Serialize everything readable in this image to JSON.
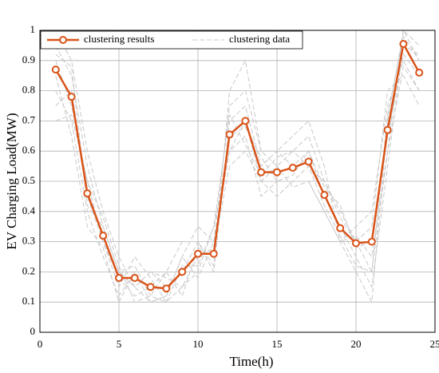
{
  "chart_data": {
    "type": "line",
    "xlabel": "Time(h)",
    "ylabel": "EV Charging Load(MW)",
    "x": [
      1,
      2,
      3,
      4,
      5,
      6,
      7,
      8,
      9,
      10,
      11,
      12,
      13,
      14,
      15,
      16,
      17,
      18,
      19,
      20,
      21,
      22,
      23,
      24
    ],
    "series": [
      {
        "name": "clustering results",
        "color": "#d95319",
        "values": [
          0.87,
          0.78,
          0.46,
          0.32,
          0.18,
          0.18,
          0.15,
          0.145,
          0.2,
          0.26,
          0.26,
          0.655,
          0.7,
          0.53,
          0.53,
          0.545,
          0.565,
          0.455,
          0.345,
          0.295,
          0.3,
          0.67,
          0.955,
          0.86
        ]
      },
      {
        "name": "clustering data",
        "color": "#c8c8c8",
        "values": [
          [
            0.95,
            0.85,
            0.55,
            0.35,
            0.2,
            0.15,
            0.1,
            0.12,
            0.25,
            0.35,
            0.3,
            0.75,
            0.8,
            0.6,
            0.55,
            0.6,
            0.65,
            0.5,
            0.4,
            0.3,
            0.2,
            0.6,
            1,
            0.9
          ],
          [
            0.8,
            0.7,
            0.4,
            0.25,
            0.12,
            0.2,
            0.2,
            0.18,
            0.15,
            0.2,
            0.35,
            0.6,
            0.65,
            0.45,
            0.5,
            0.5,
            0.5,
            0.4,
            0.3,
            0.35,
            0.4,
            0.75,
            0.9,
            0.8
          ],
          [
            0.9,
            0.75,
            0.5,
            0.38,
            0.22,
            0.1,
            0.12,
            0.2,
            0.3,
            0.3,
            0.2,
            0.7,
            0.75,
            0.55,
            0.6,
            0.55,
            0.6,
            0.45,
            0.35,
            0.25,
            0.15,
            0.55,
            0.95,
            0.92
          ],
          [
            0.75,
            0.8,
            0.45,
            0.3,
            0.15,
            0.25,
            0.18,
            0.1,
            0.15,
            0.25,
            0.28,
            0.55,
            0.6,
            0.5,
            0.45,
            0.5,
            0.55,
            0.5,
            0.38,
            0.3,
            0.35,
            0.8,
            0.85,
            0.75
          ],
          [
            1,
            0.9,
            0.6,
            0.4,
            0.25,
            0.15,
            0.2,
            0.15,
            0.2,
            0.3,
            0.22,
            0.8,
            0.9,
            0.6,
            0.6,
            0.65,
            0.7,
            0.55,
            0.3,
            0.2,
            0.1,
            0.7,
            1,
            0.95
          ],
          [
            0.85,
            0.65,
            0.35,
            0.28,
            0.1,
            0.2,
            0.1,
            0.12,
            0.25,
            0.18,
            0.3,
            0.6,
            0.7,
            0.5,
            0.55,
            0.48,
            0.5,
            0.4,
            0.3,
            0.32,
            0.25,
            0.6,
            0.88,
            0.8
          ],
          [
            0.7,
            0.72,
            0.5,
            0.3,
            0.18,
            0.12,
            0.15,
            0.2,
            0.12,
            0.28,
            0.25,
            0.65,
            0.68,
            0.58,
            0.5,
            0.52,
            0.6,
            0.48,
            0.42,
            0.28,
            0.3,
            0.65,
            0.92,
            0.85
          ],
          [
            0.92,
            0.88,
            0.42,
            0.35,
            0.2,
            0.22,
            0.12,
            0.1,
            0.22,
            0.22,
            0.35,
            0.72,
            0.62,
            0.52,
            0.58,
            0.6,
            0.55,
            0.42,
            0.32,
            0.22,
            0.2,
            0.72,
            0.98,
            0.9
          ]
        ]
      }
    ],
    "xlim": [
      0,
      25
    ],
    "xticks": [
      0,
      5,
      10,
      15,
      20,
      25
    ],
    "ylim": [
      0,
      1
    ],
    "yticks": [
      0,
      0.1,
      0.2,
      0.3,
      0.4,
      0.5,
      0.6,
      0.7,
      0.8,
      0.9,
      1
    ],
    "grid": true,
    "legend": "top-left"
  }
}
